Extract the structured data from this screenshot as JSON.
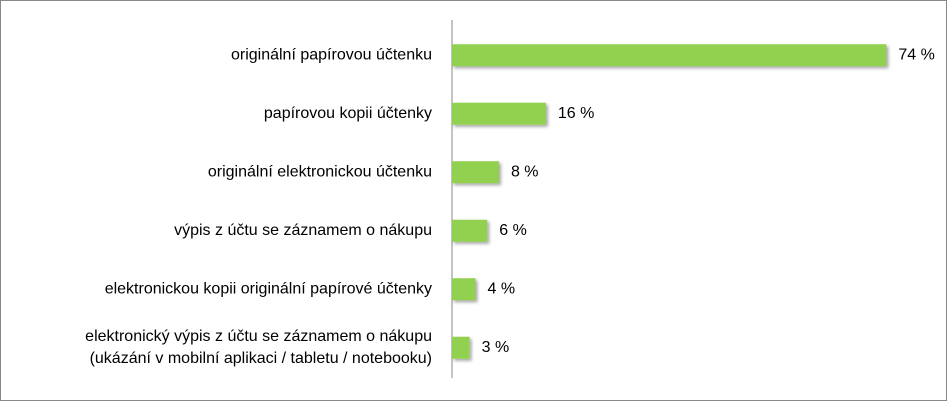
{
  "chart_data": {
    "type": "bar",
    "orientation": "horizontal",
    "categories": [
      "originální papírovou účtenku",
      "papírovou kopii účtenky",
      "originální elektronickou účtenku",
      "výpis z účtu se záznamem o nákupu",
      "elektronickou kopii originální papírové účtenky",
      "elektronický výpis z účtu se záznamem o nákupu\n(ukázání v mobilní aplikaci / tabletu / notebooku)"
    ],
    "values": [
      74,
      16,
      8,
      6,
      4,
      3
    ],
    "value_labels": [
      "74 %",
      "16 %",
      "8 %",
      "6 %",
      "4 %",
      "3 %"
    ],
    "color": "#92d050"
  }
}
